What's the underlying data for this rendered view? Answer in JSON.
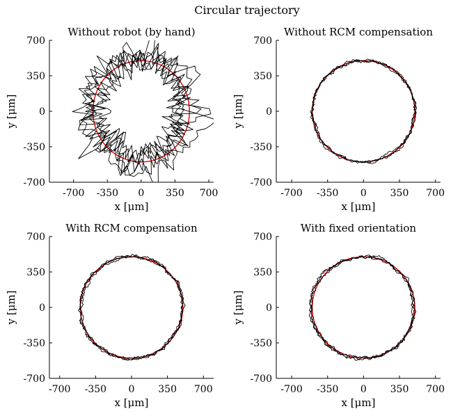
{
  "figure": {
    "title": "Circular trajectory"
  },
  "chart_data": [
    {
      "type": "line",
      "title": "Without robot (by hand)",
      "xlabel": "x [μm]",
      "ylabel": "y [μm]",
      "xlim": [
        -950,
        750
      ],
      "ylim": [
        -700,
        700
      ],
      "xticks": [
        -700,
        -350,
        0,
        350,
        700
      ],
      "yticks": [
        -700,
        -350,
        0,
        350,
        700
      ],
      "xtick_labels": [
        "-700",
        "-350",
        "0",
        "350",
        "700"
      ],
      "ytick_labels": [
        "-700",
        "-350",
        "0",
        "350",
        "700"
      ],
      "grid": false,
      "series": [
        {
          "role": "reference",
          "shape": "circle",
          "radius": 500,
          "color": "#e00000"
        },
        {
          "role": "measured",
          "color": "#000000",
          "laps": 6,
          "noise": 175,
          "x_shift": -20,
          "y_shift": 10
        }
      ]
    },
    {
      "type": "line",
      "title": "Without RCM compensation",
      "xlabel": "x [μm]",
      "ylabel": "y [μm]",
      "xlim": [
        -850,
        750
      ],
      "ylim": [
        -700,
        700
      ],
      "xticks": [
        -700,
        -350,
        0,
        350,
        700
      ],
      "yticks": [
        -700,
        -350,
        0,
        350,
        700
      ],
      "xtick_labels": [
        "-700",
        "-350",
        "0",
        "350",
        "700"
      ],
      "ytick_labels": [
        "-700",
        "-350",
        "0",
        "350",
        "700"
      ],
      "grid": false,
      "series": [
        {
          "role": "reference",
          "shape": "circle",
          "radius": 500,
          "color": "#e00000"
        },
        {
          "role": "measured",
          "color": "#000000",
          "laps": 3,
          "noise": 22,
          "x_shift": 0,
          "y_shift": 0
        }
      ]
    },
    {
      "type": "line",
      "title": "With RCM compensation",
      "xlabel": "x [μm]",
      "ylabel": "y [μm]",
      "xlim": [
        -800,
        800
      ],
      "ylim": [
        -700,
        700
      ],
      "xticks": [
        -700,
        -350,
        0,
        350,
        700
      ],
      "yticks": [
        -700,
        -350,
        0,
        350,
        700
      ],
      "xtick_labels": [
        "-700",
        "-350",
        "0",
        "350",
        "700"
      ],
      "ytick_labels": [
        "-700",
        "-350",
        "0",
        "350",
        "700"
      ],
      "grid": false,
      "series": [
        {
          "role": "reference",
          "shape": "circle",
          "radius": 500,
          "color": "#e00000"
        },
        {
          "role": "measured",
          "color": "#000000",
          "laps": 3,
          "noise": 24,
          "x_shift": 0,
          "y_shift": 0
        }
      ]
    },
    {
      "type": "line",
      "title": "With fixed orientation",
      "xlabel": "x [μm]",
      "ylabel": "y [μm]",
      "xlim": [
        -850,
        750
      ],
      "ylim": [
        -700,
        700
      ],
      "xticks": [
        -700,
        -350,
        0,
        350,
        700
      ],
      "yticks": [
        -700,
        -350,
        0,
        350,
        700
      ],
      "xtick_labels": [
        "-700",
        "-350",
        "0",
        "350",
        "700"
      ],
      "ytick_labels": [
        "-700",
        "-350",
        "0",
        "350",
        "700"
      ],
      "grid": false,
      "series": [
        {
          "role": "reference",
          "shape": "circle",
          "radius": 500,
          "color": "#e00000"
        },
        {
          "role": "measured",
          "color": "#000000",
          "laps": 3,
          "noise": 26,
          "x_shift": -10,
          "y_shift": 0
        }
      ]
    }
  ]
}
